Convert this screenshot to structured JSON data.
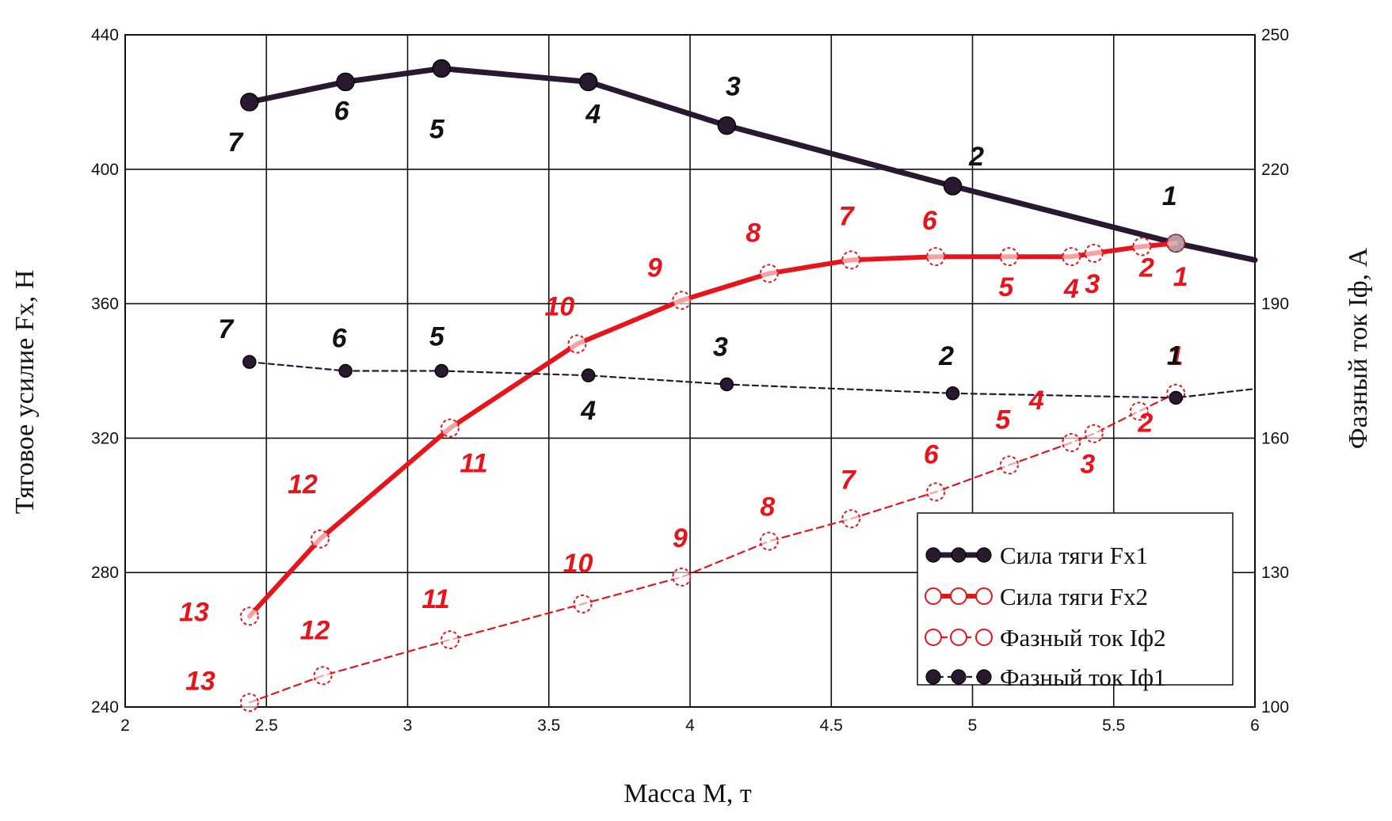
{
  "chart_data": {
    "type": "line",
    "xlabel": "Масса М, т",
    "ylabel": "Тяговое усилие Fx, Н",
    "y2label": "Фазный ток Iф, А",
    "xlim": [
      2,
      6
    ],
    "ylim": [
      240,
      440
    ],
    "y2lim": [
      100,
      250
    ],
    "x_ticks": [
      "2",
      "2.5",
      "3",
      "3.5",
      "4",
      "4.5",
      "5",
      "5.5",
      "6"
    ],
    "y_ticks": [
      "240",
      "280",
      "320",
      "360",
      "400",
      "440"
    ],
    "y2_ticks": [
      "100",
      "130",
      "160",
      "190",
      "220",
      "250"
    ],
    "grid": true,
    "legend_position": "bottom-right",
    "colors": {
      "dark": "#2a1830",
      "red": "#e8141b"
    },
    "series": [
      {
        "name": "Сила тяги Fx1",
        "axis": "left",
        "style": "solid-thick",
        "color": "#2a1830",
        "marker": "filled",
        "x": [
          2.44,
          2.78,
          3.12,
          3.64,
          4.13,
          4.93,
          5.72,
          6.0
        ],
        "y": [
          420,
          426,
          430,
          426,
          413,
          395,
          378,
          373
        ],
        "markers": [
          true,
          true,
          true,
          true,
          true,
          true,
          true,
          false
        ],
        "point_labels": [
          "7",
          "6",
          "5",
          "4",
          "3",
          "2",
          "1",
          ""
        ]
      },
      {
        "name": "Сила тяги Fx2",
        "axis": "left",
        "style": "solid-red",
        "color": "#e8141b",
        "marker": "hollow",
        "x": [
          2.44,
          2.69,
          3.15,
          3.6,
          3.97,
          4.28,
          4.57,
          4.87,
          5.13,
          5.35,
          5.43,
          5.6,
          5.72
        ],
        "y": [
          267,
          290,
          323,
          348,
          361,
          369,
          373,
          374,
          374,
          374,
          375,
          377,
          378
        ],
        "markers": [
          true,
          true,
          true,
          true,
          true,
          true,
          true,
          true,
          true,
          true,
          true,
          true,
          true
        ],
        "point_labels": [
          "13",
          "12",
          "11",
          "10",
          "9",
          "8",
          "7",
          "6",
          "5",
          "4",
          "3",
          "2",
          "1"
        ]
      },
      {
        "name": "Фазный ток Iф2",
        "axis": "right",
        "style": "dashed-red",
        "color": "#e8141b",
        "marker": "hollow",
        "x": [
          2.44,
          2.7,
          3.15,
          3.62,
          3.97,
          4.28,
          4.57,
          4.87,
          5.13,
          5.35,
          5.43,
          5.59,
          5.72
        ],
        "y": [
          101,
          107,
          115,
          123,
          129,
          137,
          142,
          148,
          154,
          159,
          161,
          166,
          170
        ],
        "markers": [
          true,
          true,
          true,
          true,
          true,
          true,
          true,
          true,
          true,
          true,
          true,
          true,
          true
        ],
        "point_labels": [
          "13",
          "12",
          "11",
          "10",
          "9",
          "8",
          "7",
          "6",
          "5",
          "4",
          "3",
          "2",
          "1"
        ]
      },
      {
        "name": "Фазный ток Iф1",
        "axis": "right",
        "style": "dashed-dark",
        "color": "#2a1830",
        "marker": "filled",
        "x": [
          2.44,
          2.78,
          3.12,
          3.64,
          4.13,
          4.93,
          5.72,
          6.0
        ],
        "y": [
          177,
          175,
          175,
          174,
          172,
          170,
          169,
          171
        ],
        "markers": [
          true,
          true,
          true,
          true,
          true,
          true,
          true,
          false
        ],
        "point_labels": [
          "7",
          "6",
          "5",
          "4",
          "3",
          "2",
          "1",
          ""
        ]
      }
    ]
  }
}
